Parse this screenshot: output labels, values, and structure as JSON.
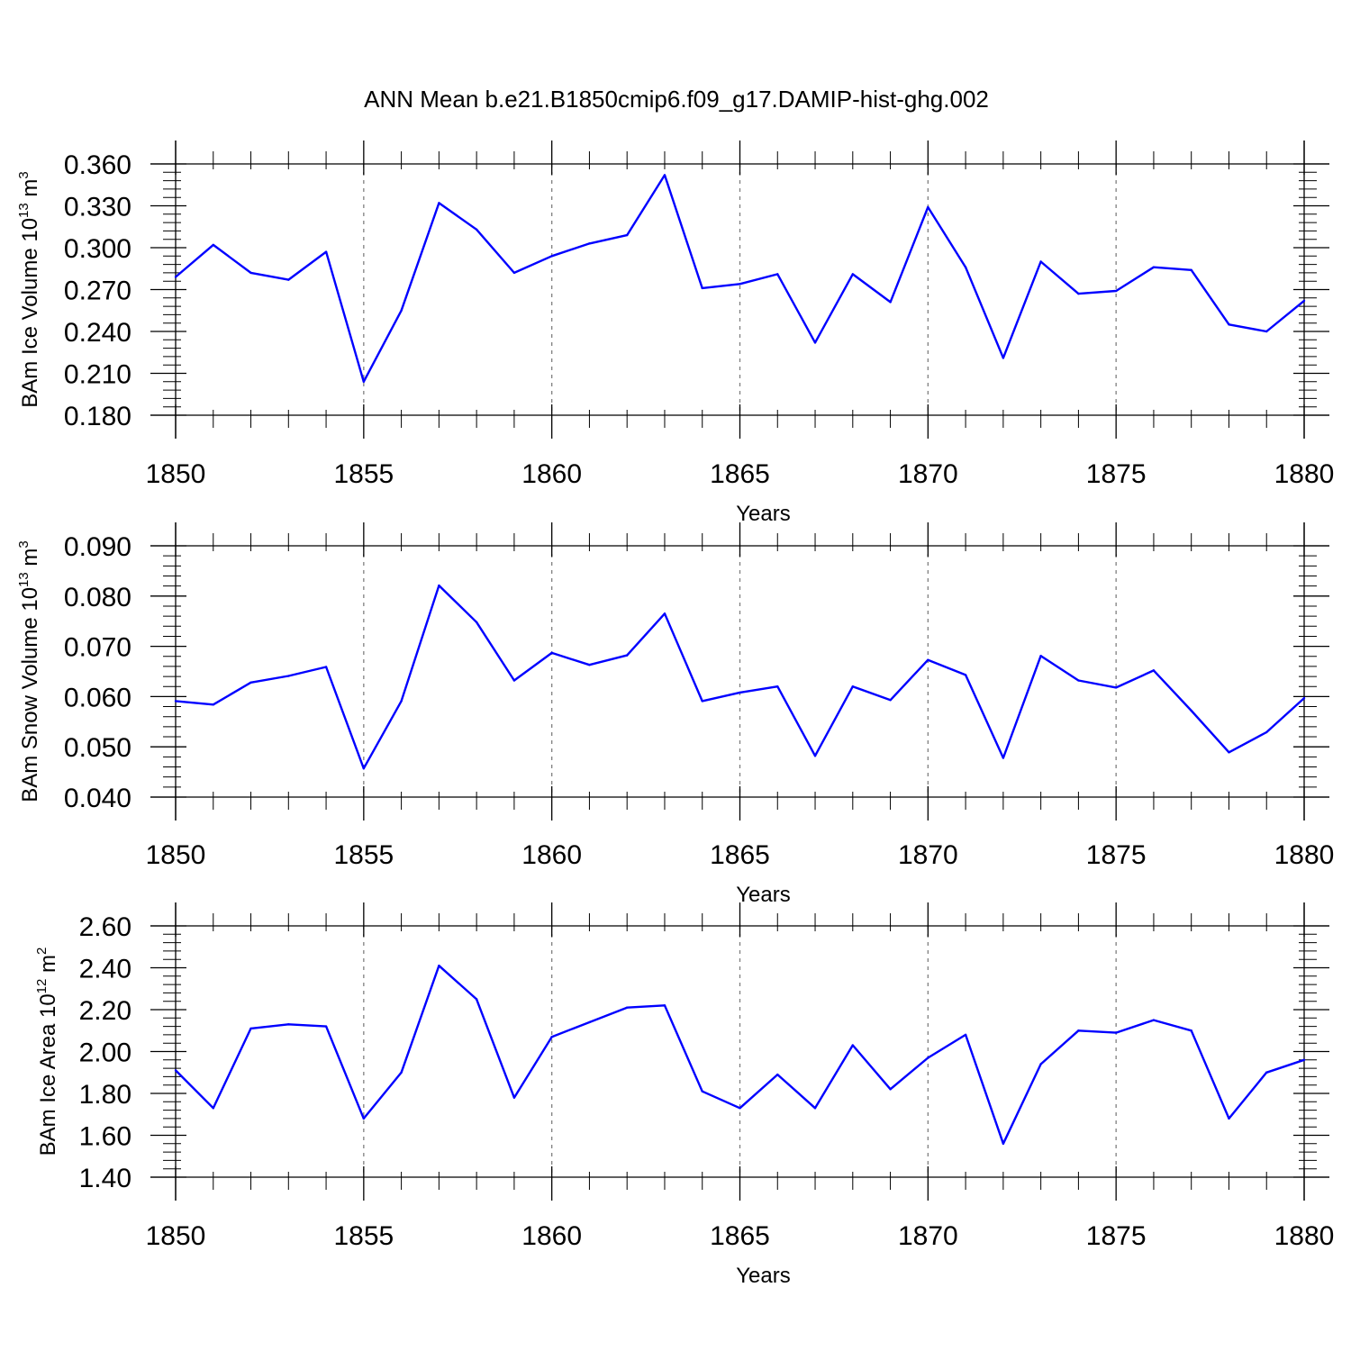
{
  "figure": {
    "title": "ANN Mean b.e21.B1850cmip6.f09_g17.DAMIP-hist-ghg.002",
    "colors": {
      "series": "#0000ff",
      "axis": "#000000",
      "grid": "#808080"
    }
  },
  "chart_data": [
    {
      "type": "line",
      "xlabel": "Years",
      "ylabel": {
        "text": "BAm Ice Volume 10",
        "exp": "13",
        "unit": " m",
        "unit_exp": "3"
      },
      "xlim": [
        1850,
        1880
      ],
      "ylim": [
        0.18,
        0.36
      ],
      "xticks": [
        1850,
        1855,
        1860,
        1865,
        1870,
        1875,
        1880
      ],
      "xtick_labels": [
        "1850",
        "1855",
        "1860",
        "1865",
        "1870",
        "1875",
        "1880"
      ],
      "yticks": [
        0.18,
        0.21,
        0.24,
        0.27,
        0.3,
        0.33,
        0.36
      ],
      "ytick_labels": [
        "0.180",
        "0.210",
        "0.240",
        "0.270",
        "0.300",
        "0.330",
        "0.360"
      ],
      "grid": "vertical dashed at major x ticks",
      "x": [
        1850,
        1851,
        1852,
        1853,
        1854,
        1855,
        1856,
        1857,
        1858,
        1859,
        1860,
        1861,
        1862,
        1863,
        1864,
        1865,
        1866,
        1867,
        1868,
        1869,
        1870,
        1871,
        1872,
        1873,
        1874,
        1875,
        1876,
        1877,
        1878,
        1879,
        1880
      ],
      "values": [
        0.279,
        0.302,
        0.282,
        0.277,
        0.297,
        0.204,
        0.255,
        0.332,
        0.313,
        0.282,
        0.294,
        0.303,
        0.309,
        0.352,
        0.271,
        0.274,
        0.281,
        0.232,
        0.281,
        0.261,
        0.329,
        0.286,
        0.221,
        0.29,
        0.267,
        0.269,
        0.286,
        0.284,
        0.245,
        0.24,
        0.262
      ]
    },
    {
      "type": "line",
      "xlabel": "Years",
      "ylabel": {
        "text": "BAm Snow Volume 10",
        "exp": "13",
        "unit": " m",
        "unit_exp": "3"
      },
      "xlim": [
        1850,
        1880
      ],
      "ylim": [
        0.04,
        0.09
      ],
      "xticks": [
        1850,
        1855,
        1860,
        1865,
        1870,
        1875,
        1880
      ],
      "xtick_labels": [
        "1850",
        "1855",
        "1860",
        "1865",
        "1870",
        "1875",
        "1880"
      ],
      "yticks": [
        0.04,
        0.05,
        0.06,
        0.07,
        0.08,
        0.09
      ],
      "ytick_labels": [
        "0.040",
        "0.050",
        "0.060",
        "0.070",
        "0.080",
        "0.090"
      ],
      "grid": "vertical dashed at major x ticks",
      "x": [
        1850,
        1851,
        1852,
        1853,
        1854,
        1855,
        1856,
        1857,
        1858,
        1859,
        1860,
        1861,
        1862,
        1863,
        1864,
        1865,
        1866,
        1867,
        1868,
        1869,
        1870,
        1871,
        1872,
        1873,
        1874,
        1875,
        1876,
        1877,
        1878,
        1879,
        1880
      ],
      "values": [
        0.0591,
        0.0584,
        0.0628,
        0.0641,
        0.0659,
        0.0457,
        0.0591,
        0.0821,
        0.0748,
        0.0632,
        0.0687,
        0.0663,
        0.0682,
        0.0765,
        0.0591,
        0.0608,
        0.062,
        0.0482,
        0.062,
        0.0593,
        0.0673,
        0.0643,
        0.0478,
        0.0681,
        0.0632,
        0.0618,
        0.0652,
        0.0572,
        0.0489,
        0.0529,
        0.0597
      ]
    },
    {
      "type": "line",
      "xlabel": "Years",
      "ylabel": {
        "text": "BAm Ice Area 10",
        "exp": "12",
        "unit": " m",
        "unit_exp": "2"
      },
      "xlim": [
        1850,
        1880
      ],
      "ylim": [
        1.4,
        2.6
      ],
      "xticks": [
        1850,
        1855,
        1860,
        1865,
        1870,
        1875,
        1880
      ],
      "xtick_labels": [
        "1850",
        "1855",
        "1860",
        "1865",
        "1870",
        "1875",
        "1880"
      ],
      "yticks": [
        1.4,
        1.6,
        1.8,
        2.0,
        2.2,
        2.4,
        2.6
      ],
      "ytick_labels": [
        "1.40",
        "1.60",
        "1.80",
        "2.00",
        "2.20",
        "2.40",
        "2.60"
      ],
      "grid": "vertical dashed at major x ticks",
      "x": [
        1850,
        1851,
        1852,
        1853,
        1854,
        1855,
        1856,
        1857,
        1858,
        1859,
        1860,
        1861,
        1862,
        1863,
        1864,
        1865,
        1866,
        1867,
        1868,
        1869,
        1870,
        1871,
        1872,
        1873,
        1874,
        1875,
        1876,
        1877,
        1878,
        1879,
        1880
      ],
      "values": [
        1.91,
        1.73,
        2.11,
        2.13,
        2.12,
        1.68,
        1.9,
        2.41,
        2.25,
        1.78,
        2.07,
        2.14,
        2.21,
        2.22,
        1.81,
        1.73,
        1.89,
        1.73,
        2.03,
        1.82,
        1.97,
        2.08,
        1.56,
        1.94,
        2.1,
        2.09,
        2.15,
        2.1,
        1.68,
        1.9,
        1.96
      ]
    }
  ]
}
